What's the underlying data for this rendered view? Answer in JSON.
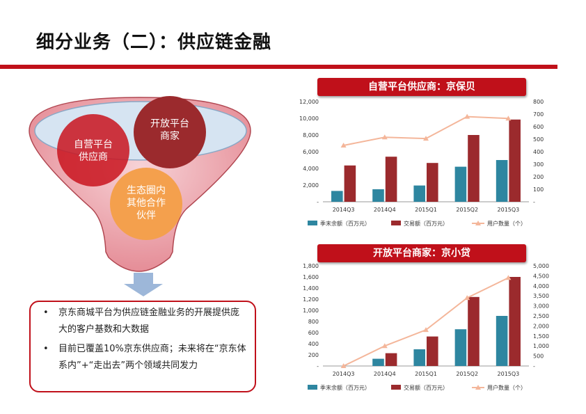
{
  "page": {
    "title": "细分业务（二）：供应链金融"
  },
  "funnel": {
    "circle_1": [
      "自营平台",
      "供应商"
    ],
    "circle_2": [
      "开放平台",
      "商家"
    ],
    "circle_3": [
      "生态圈内",
      "其他合作",
      "伙伴"
    ]
  },
  "bullets": [
    "京东商城平台为供应链金融业务的开展提供庞大的客户基数和大数据",
    "目前已覆盖10%京东供应商；未来将在“京东体系内”+“走出去”两个领域共同发力"
  ],
  "colors": {
    "accent": "#c0101a",
    "series_balance": "#2e86a0",
    "series_volume": "#9b2a2d",
    "series_users": "#f4b69a"
  },
  "chart_data": [
    {
      "type": "bar",
      "title": "自营平台供应商：京保贝",
      "categories": [
        "2014Q3",
        "2014Q4",
        "2015Q1",
        "2015Q2",
        "2015Q3"
      ],
      "series": [
        {
          "name": "季末余额（百万元）",
          "axis": "left",
          "values": [
            1300,
            1500,
            1950,
            4200,
            5000
          ]
        },
        {
          "name": "交易额（百万元）",
          "axis": "left",
          "values": [
            4350,
            5400,
            4650,
            8000,
            9850
          ]
        },
        {
          "name": "用户数量（个）",
          "axis": "right",
          "type": "line",
          "values": [
            450,
            515,
            505,
            680,
            665
          ]
        }
      ],
      "y_left": {
        "min": 0,
        "max": 12000,
        "ticks": [
          "-",
          "2,000",
          "4,000",
          "6,000",
          "8,000",
          "10,000",
          "12,000"
        ]
      },
      "y_right": {
        "min": 0,
        "max": 800,
        "ticks": [
          "-",
          "100",
          "200",
          "300",
          "400",
          "500",
          "600",
          "700",
          "800"
        ]
      },
      "legend": "bottom",
      "grid": false
    },
    {
      "type": "bar",
      "title": "开放平台商家：京小贷",
      "categories": [
        "2014Q3",
        "2014Q4",
        "2015Q1",
        "2015Q2",
        "2015Q3"
      ],
      "series": [
        {
          "name": "季末余额（百万元）",
          "axis": "left",
          "values": [
            0,
            130,
            300,
            660,
            900
          ]
        },
        {
          "name": "交易额（百万元）",
          "axis": "left",
          "values": [
            0,
            230,
            530,
            1240,
            1600
          ]
        },
        {
          "name": "用户数量（个）",
          "axis": "right",
          "type": "line",
          "values": [
            0,
            1000,
            1800,
            3400,
            4400
          ]
        }
      ],
      "y_left": {
        "min": 0,
        "max": 1800,
        "ticks": [
          "-",
          "200",
          "400",
          "600",
          "800",
          "1,000",
          "1,200",
          "1,400",
          "1,600",
          "1,800"
        ]
      },
      "y_right": {
        "min": 0,
        "max": 5000,
        "ticks": [
          "-",
          "500",
          "1,000",
          "1,500",
          "2,000",
          "2,500",
          "3,000",
          "3,500",
          "4,000",
          "4,500",
          "5,000"
        ]
      },
      "legend": "bottom",
      "grid": false
    }
  ]
}
